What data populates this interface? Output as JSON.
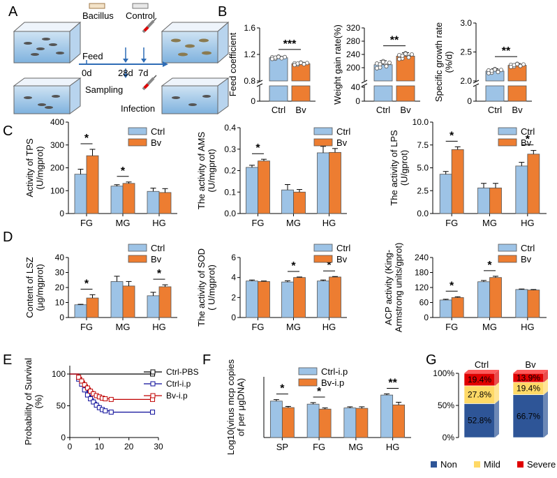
{
  "colors": {
    "ctrl": "#9dc3e6",
    "bv": "#ed7d31",
    "bar_edge": "#555555",
    "ctrl_line": "#0b0b99",
    "bv_line": "#c00000",
    "pbs_line": "#000000",
    "non": "#2e5597",
    "mild": "#ffd966",
    "severe": "#e00000",
    "water": "#9dc3e6"
  },
  "panel_labels": {
    "a": "A",
    "b": "B",
    "c": "C",
    "d": "D",
    "e": "E",
    "f": "F",
    "g": "G"
  },
  "schematic": {
    "bacillus": "Bacillus",
    "control": "Control",
    "feed": "Feed",
    "day0": "0d",
    "day28": "28d",
    "day7": "7d",
    "sampling": "Sampling",
    "infection": "Infection"
  },
  "legend": {
    "ctrl": "Ctrl",
    "bv": "Bv"
  },
  "chart_data": [
    {
      "id": "b1",
      "type": "bar",
      "title": "",
      "ylabel": "Feed coefficient",
      "categories": [
        "Ctrl",
        "Bv"
      ],
      "values": [
        1.15,
        1.06
      ],
      "errors": [
        0.02,
        0.02
      ],
      "ylim": [
        0.8,
        1.6
      ],
      "ticks": [
        "0.8",
        "1.2",
        "1.6"
      ],
      "y_break": true,
      "lower_tick": "0",
      "significance": "***"
    },
    {
      "id": "b2",
      "type": "bar",
      "ylabel": "Weight gain rate(%)",
      "categories": [
        "Ctrl",
        "Bv"
      ],
      "values": [
        209,
        235
      ],
      "errors": [
        12,
        10
      ],
      "ylim": [
        160,
        320
      ],
      "ticks": [
        "200",
        "240",
        "280",
        "320"
      ],
      "y_break": true,
      "lower_ticks": [
        "0",
        "40"
      ],
      "significance": "**"
    },
    {
      "id": "b3",
      "type": "bar",
      "ylabel": "Specific growth rate (%/d)",
      "ylabel_lines": [
        "Specific growth rate",
        "(%/d)"
      ],
      "categories": [
        "Ctrl",
        "Bv"
      ],
      "values": [
        2.17,
        2.27
      ],
      "errors": [
        0.04,
        0.03
      ],
      "ylim": [
        2.0,
        3.0
      ],
      "ticks": [
        "2.0",
        "2.5",
        "3.0"
      ],
      "y_break": true,
      "lower_tick": "0",
      "significance": "**"
    },
    {
      "id": "c1",
      "type": "bar",
      "ylabel_lines": [
        "Activity of  TPS",
        "(U/mgprot)"
      ],
      "categories": [
        "FG",
        "MG",
        "HG"
      ],
      "series": [
        {
          "name": "Ctrl",
          "values": [
            172,
            120,
            97
          ],
          "errors": [
            22,
            6,
            14
          ]
        },
        {
          "name": "Bv",
          "values": [
            253,
            132,
            92
          ],
          "errors": [
            28,
            6,
            17
          ]
        }
      ],
      "ylim": [
        0,
        400
      ],
      "ticks": [
        "0",
        "100",
        "200",
        "300",
        "400"
      ],
      "significance": [
        {
          "group": 0,
          "label": "*"
        },
        {
          "group": 1,
          "label": "*"
        }
      ]
    },
    {
      "id": "c2",
      "type": "bar",
      "ylabel_lines": [
        "The activity of  AMS",
        "(U/mgprot)"
      ],
      "categories": [
        "FG",
        "MG",
        "HG"
      ],
      "series": [
        {
          "name": "Ctrl",
          "values": [
            0.215,
            0.11,
            0.283
          ],
          "errors": [
            0.01,
            0.025,
            0.03
          ]
        },
        {
          "name": "Bv",
          "values": [
            0.245,
            0.1,
            0.285
          ],
          "errors": [
            0.008,
            0.012,
            0.018
          ]
        }
      ],
      "ylim": [
        0,
        0.4
      ],
      "ticks": [
        "0.0",
        "0.1",
        "0.2",
        "0.3",
        "0.4"
      ],
      "significance": [
        {
          "group": 0,
          "label": "*"
        }
      ]
    },
    {
      "id": "c3",
      "type": "bar",
      "ylabel_lines": [
        "The activity of  LPS",
        "(U/gprot)"
      ],
      "categories": [
        "FG",
        "MG",
        "HG"
      ],
      "series": [
        {
          "name": "Ctrl",
          "values": [
            4.3,
            2.8,
            5.2
          ],
          "errors": [
            0.3,
            0.5,
            0.4
          ]
        },
        {
          "name": "Bv",
          "values": [
            7.0,
            2.8,
            6.5
          ],
          "errors": [
            0.3,
            0.5,
            0.4
          ]
        }
      ],
      "ylim": [
        0,
        10
      ],
      "ticks": [
        "0.0",
        "2.5",
        "5.0",
        "7.5",
        "10.0"
      ],
      "significance": [
        {
          "group": 0,
          "label": "*"
        },
        {
          "group": 2,
          "label": "*"
        }
      ]
    },
    {
      "id": "d1",
      "type": "bar",
      "ylabel_lines": [
        "Content of  LSZ",
        "(μg/mgprot)"
      ],
      "categories": [
        "FG",
        "MG",
        "HG"
      ],
      "series": [
        {
          "name": "Ctrl",
          "values": [
            8.5,
            24,
            14.5
          ],
          "errors": [
            0.3,
            3.5,
            2.3
          ]
        },
        {
          "name": "Bv",
          "values": [
            13,
            21,
            20.5
          ],
          "errors": [
            2.2,
            3,
            1.3
          ]
        }
      ],
      "ylim": [
        0,
        40
      ],
      "ticks": [
        "0",
        "10",
        "20",
        "30",
        "40"
      ],
      "significance": [
        {
          "group": 0,
          "label": "*"
        },
        {
          "group": 2,
          "label": "*"
        }
      ]
    },
    {
      "id": "d2",
      "type": "bar",
      "ylabel_lines": [
        "The activity of  SOD",
        "( U/mgprot)"
      ],
      "categories": [
        "FG",
        "MG",
        "HG"
      ],
      "series": [
        {
          "name": "Ctrl",
          "values": [
            3.65,
            3.55,
            3.65
          ],
          "errors": [
            0.1,
            0.12,
            0.1
          ]
        },
        {
          "name": "Bv",
          "values": [
            3.6,
            4.0,
            4.05
          ],
          "errors": [
            0.05,
            0.05,
            0.05
          ]
        }
      ],
      "ylim": [
        0,
        6
      ],
      "ticks": [
        "0",
        "2",
        "4",
        "6"
      ],
      "significance": [
        {
          "group": 1,
          "label": "*"
        },
        {
          "group": 2,
          "label": "*"
        }
      ]
    },
    {
      "id": "d3",
      "type": "bar",
      "ylabel_lines": [
        "ACP activity (King-",
        "Armstrong units/gprot)"
      ],
      "categories": [
        "FG",
        "MG",
        "HG"
      ],
      "series": [
        {
          "name": "Ctrl",
          "values": [
            70,
            143,
            112
          ],
          "errors": [
            3,
            5,
            2
          ]
        },
        {
          "name": "Bv",
          "values": [
            80,
            160,
            110
          ],
          "errors": [
            3,
            5,
            2
          ]
        }
      ],
      "ylim": [
        0,
        240
      ],
      "ticks": [
        "0",
        "60",
        "120",
        "180",
        "240"
      ],
      "significance": [
        {
          "group": 0,
          "label": "*"
        },
        {
          "group": 1,
          "label": "*"
        }
      ]
    },
    {
      "id": "e",
      "type": "line",
      "ylabel_lines": [
        "Probability of Survival",
        "(%)"
      ],
      "xlim": [
        0,
        30
      ],
      "ylim": [
        0,
        100
      ],
      "xticks": [
        "0",
        "10",
        "20",
        "30"
      ],
      "yticks": [
        "0",
        "50",
        "100"
      ],
      "series": [
        {
          "name": "Ctrl-PBS",
          "x": [
            0,
            28
          ],
          "y": [
            100,
            100
          ]
        },
        {
          "name": "Ctrl-i.p",
          "x": [
            0,
            3,
            4,
            5,
            6,
            7,
            8,
            9,
            10,
            11,
            12,
            14,
            28
          ],
          "y": [
            100,
            92,
            84,
            75,
            67,
            61,
            56,
            51,
            47,
            44,
            42,
            40,
            40
          ]
        },
        {
          "name": "Bv-i.p",
          "x": [
            0,
            3,
            4,
            5,
            6,
            7,
            8,
            9,
            10,
            11,
            12,
            14,
            28
          ],
          "y": [
            100,
            95,
            89,
            83,
            78,
            73,
            69,
            66,
            64,
            62,
            61,
            60,
            60
          ]
        }
      ]
    },
    {
      "id": "f",
      "type": "bar",
      "ylabel_lines": [
        "Log10(virus mcp copies",
        "of per μgDNA)"
      ],
      "categories": [
        "SP",
        "FG",
        "MG",
        "HG"
      ],
      "series": [
        {
          "name": "Ctrl-i.p",
          "values": [
            4.8,
            4.4,
            3.9,
            5.6
          ],
          "errors": [
            0.2,
            0.2,
            0.15,
            0.15
          ]
        },
        {
          "name": "Bv-i.p",
          "values": [
            3.95,
            3.75,
            3.85,
            4.3
          ],
          "errors": [
            0.15,
            0.15,
            0.2,
            0.35
          ]
        }
      ],
      "ylim": [
        0,
        8
      ],
      "ticks": [],
      "significance": [
        {
          "group": 0,
          "label": "*"
        },
        {
          "group": 1,
          "label": "*"
        },
        {
          "group": 3,
          "label": "**"
        }
      ]
    },
    {
      "id": "g",
      "type": "bar",
      "stacked": true,
      "categories": [
        "Ctrl",
        "Bv"
      ],
      "series": [
        {
          "name": "Non",
          "values": [
            52.8,
            66.7
          ]
        },
        {
          "name": "Mild",
          "values": [
            27.8,
            19.4
          ]
        },
        {
          "name": "Severe",
          "values": [
            19.4,
            13.9
          ]
        }
      ],
      "labels": [
        [
          "52.8%",
          "27.8%",
          "19.4%"
        ],
        [
          "66.7%",
          "19.4%",
          "13.9%"
        ]
      ],
      "yticks": [
        "0%",
        "50%",
        "100%"
      ]
    }
  ]
}
